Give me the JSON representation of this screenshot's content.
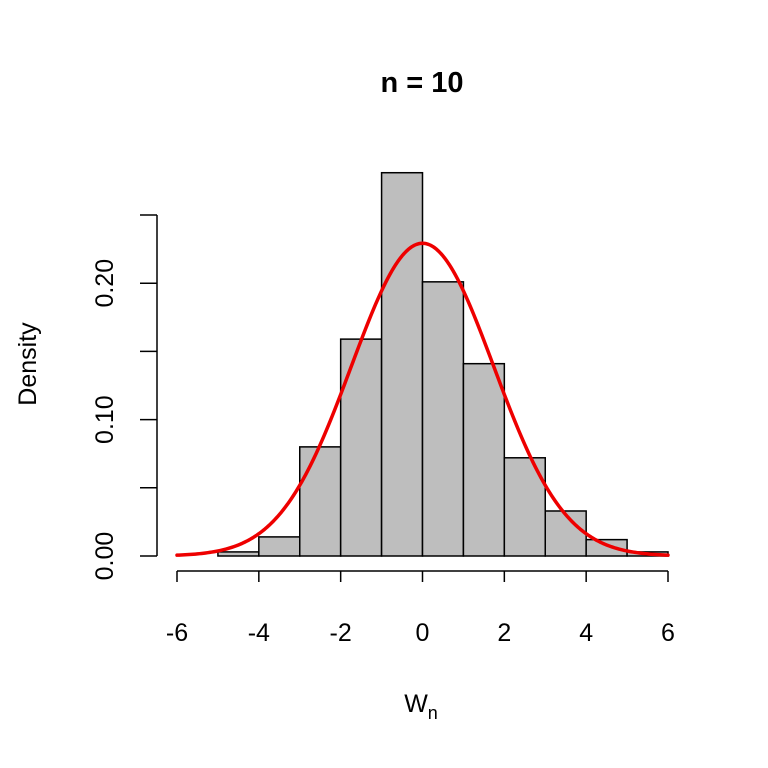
{
  "chart_data": {
    "type": "bar",
    "title": "n =  10",
    "xlabel": "W",
    "xlabel_subscript": "n",
    "ylabel": "Density",
    "xlim": [
      -6,
      6
    ],
    "ylim": [
      0,
      0.25
    ],
    "x_ticks": [
      -6,
      -4,
      -2,
      0,
      2,
      4,
      6
    ],
    "x_tick_labels": [
      "-6",
      "-4",
      "-2",
      "0",
      "2",
      "4",
      "6"
    ],
    "y_ticks": [
      0.0,
      0.05,
      0.1,
      0.15,
      0.2,
      0.25
    ],
    "y_tick_labels": [
      "0.00",
      "",
      "0.10",
      "",
      "0.20",
      ""
    ],
    "grid": false,
    "legend": "none",
    "bins": [
      {
        "x0": -5,
        "x1": -4,
        "density": 0.003
      },
      {
        "x0": -4,
        "x1": -3,
        "density": 0.014
      },
      {
        "x0": -3,
        "x1": -2,
        "density": 0.08
      },
      {
        "x0": -2,
        "x1": -1,
        "density": 0.159
      },
      {
        "x0": -1,
        "x1": 0,
        "density": 0.281
      },
      {
        "x0": 0,
        "x1": 1,
        "density": 0.201
      },
      {
        "x0": 1,
        "x1": 2,
        "density": 0.141
      },
      {
        "x0": 2,
        "x1": 3,
        "density": 0.072
      },
      {
        "x0": 3,
        "x1": 4,
        "density": 0.033
      },
      {
        "x0": 4,
        "x1": 5,
        "density": 0.012
      },
      {
        "x0": 5,
        "x1": 6,
        "density": 0.003
      }
    ],
    "curve": {
      "kind": "normal-density",
      "mean": 0,
      "sd": 1.74,
      "x_from": -6,
      "x_to": 6,
      "color": "#ee0000"
    },
    "bar_fill": "#bebebe",
    "bar_stroke": "#000000"
  }
}
